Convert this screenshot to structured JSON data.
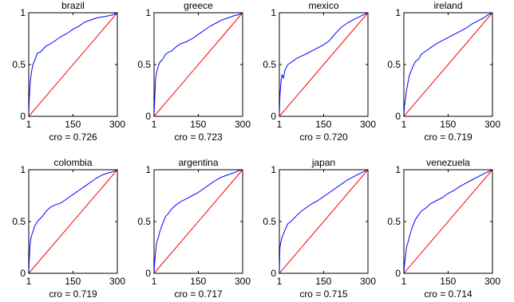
{
  "chart_data": [
    {
      "type": "line",
      "title": "brazil",
      "xlabel": "cro = 0.726",
      "xlim": [
        1,
        300
      ],
      "ylim": [
        0,
        1
      ],
      "xticks": [
        "1",
        "150",
        "300"
      ],
      "yticks": [
        "0",
        "0.5",
        "1"
      ],
      "series": [
        {
          "color": "#0000ff",
          "x": [
            1,
            3,
            6,
            10,
            15,
            20,
            30,
            40,
            50,
            60,
            75,
            90,
            110,
            130,
            150,
            170,
            190,
            210,
            230,
            250,
            270,
            285,
            300
          ],
          "y": [
            0,
            0.18,
            0.33,
            0.42,
            0.5,
            0.53,
            0.61,
            0.62,
            0.65,
            0.68,
            0.7,
            0.73,
            0.77,
            0.8,
            0.84,
            0.87,
            0.91,
            0.93,
            0.95,
            0.96,
            0.97,
            0.98,
            1.0
          ]
        },
        {
          "color": "#ff0000",
          "x": [
            1,
            300
          ],
          "y": [
            0,
            1
          ]
        }
      ]
    },
    {
      "type": "line",
      "title": "greece",
      "xlabel": "cro = 0.723",
      "xlim": [
        1,
        300
      ],
      "ylim": [
        0,
        1
      ],
      "xticks": [
        "1",
        "150",
        "300"
      ],
      "yticks": [
        "0",
        "0.5",
        "1"
      ],
      "series": [
        {
          "color": "#0000ff",
          "x": [
            1,
            3,
            6,
            10,
            15,
            20,
            30,
            40,
            50,
            60,
            75,
            90,
            110,
            130,
            150,
            170,
            190,
            210,
            230,
            250,
            270,
            285,
            300
          ],
          "y": [
            0,
            0.14,
            0.36,
            0.43,
            0.48,
            0.52,
            0.55,
            0.6,
            0.62,
            0.63,
            0.67,
            0.7,
            0.72,
            0.75,
            0.79,
            0.83,
            0.87,
            0.9,
            0.93,
            0.95,
            0.97,
            0.98,
            1.0
          ]
        },
        {
          "color": "#ff0000",
          "x": [
            1,
            300
          ],
          "y": [
            0,
            1
          ]
        }
      ]
    },
    {
      "type": "line",
      "title": "mexico",
      "xlabel": "cro = 0.720",
      "xlim": [
        1,
        300
      ],
      "ylim": [
        0,
        1
      ],
      "xticks": [
        "1",
        "150",
        "300"
      ],
      "yticks": [
        "0",
        "0.5",
        "1"
      ],
      "series": [
        {
          "color": "#0000ff",
          "x": [
            1,
            3,
            6,
            10,
            15,
            20,
            30,
            40,
            50,
            60,
            75,
            90,
            110,
            130,
            150,
            170,
            190,
            210,
            230,
            250,
            270,
            285,
            300
          ],
          "y": [
            0,
            0.2,
            0.32,
            0.4,
            0.37,
            0.45,
            0.5,
            0.52,
            0.54,
            0.56,
            0.58,
            0.6,
            0.63,
            0.66,
            0.69,
            0.73,
            0.8,
            0.86,
            0.9,
            0.93,
            0.96,
            0.98,
            1.0
          ]
        },
        {
          "color": "#ff0000",
          "x": [
            1,
            300
          ],
          "y": [
            0,
            1
          ]
        }
      ]
    },
    {
      "type": "line",
      "title": "ireland",
      "xlabel": "cro = 0.719",
      "xlim": [
        1,
        300
      ],
      "ylim": [
        0,
        1
      ],
      "xticks": [
        "1",
        "150",
        "300"
      ],
      "yticks": [
        "0",
        "0.5",
        "1"
      ],
      "series": [
        {
          "color": "#0000ff",
          "x": [
            1,
            3,
            6,
            10,
            15,
            20,
            30,
            40,
            50,
            60,
            75,
            90,
            110,
            130,
            150,
            170,
            190,
            210,
            230,
            250,
            270,
            285,
            300
          ],
          "y": [
            0,
            0.1,
            0.16,
            0.25,
            0.33,
            0.4,
            0.47,
            0.53,
            0.55,
            0.6,
            0.63,
            0.66,
            0.7,
            0.73,
            0.76,
            0.79,
            0.82,
            0.85,
            0.89,
            0.92,
            0.95,
            0.98,
            1.0
          ]
        },
        {
          "color": "#ff0000",
          "x": [
            1,
            300
          ],
          "y": [
            0,
            1
          ]
        }
      ]
    },
    {
      "type": "line",
      "title": "colombia",
      "xlabel": "cro = 0.719",
      "xlim": [
        1,
        300
      ],
      "ylim": [
        0,
        1
      ],
      "xticks": [
        "1",
        "150",
        "300"
      ],
      "yticks": [
        "0",
        "0.5",
        "1"
      ],
      "series": [
        {
          "color": "#0000ff",
          "x": [
            1,
            3,
            6,
            10,
            15,
            20,
            30,
            40,
            50,
            60,
            75,
            90,
            110,
            130,
            150,
            170,
            190,
            210,
            230,
            250,
            270,
            285,
            300
          ],
          "y": [
            0,
            0.14,
            0.3,
            0.36,
            0.4,
            0.45,
            0.5,
            0.53,
            0.56,
            0.6,
            0.64,
            0.66,
            0.68,
            0.72,
            0.76,
            0.8,
            0.84,
            0.88,
            0.92,
            0.95,
            0.97,
            0.98,
            1.0
          ]
        },
        {
          "color": "#ff0000",
          "x": [
            1,
            300
          ],
          "y": [
            0,
            1
          ]
        }
      ]
    },
    {
      "type": "line",
      "title": "argentina",
      "xlabel": "cro = 0.717",
      "xlim": [
        1,
        300
      ],
      "ylim": [
        0,
        1
      ],
      "xticks": [
        "1",
        "150",
        "300"
      ],
      "yticks": [
        "0",
        "0.5",
        "1"
      ],
      "series": [
        {
          "color": "#0000ff",
          "x": [
            1,
            3,
            6,
            10,
            15,
            20,
            30,
            40,
            50,
            60,
            75,
            90,
            110,
            130,
            150,
            170,
            190,
            210,
            230,
            250,
            270,
            285,
            300
          ],
          "y": [
            0,
            0.1,
            0.2,
            0.3,
            0.34,
            0.4,
            0.48,
            0.55,
            0.58,
            0.62,
            0.66,
            0.69,
            0.72,
            0.75,
            0.78,
            0.82,
            0.86,
            0.9,
            0.93,
            0.95,
            0.97,
            0.99,
            1.0
          ]
        },
        {
          "color": "#ff0000",
          "x": [
            1,
            300
          ],
          "y": [
            0,
            1
          ]
        }
      ]
    },
    {
      "type": "line",
      "title": "japan",
      "xlabel": "cro = 0.715",
      "xlim": [
        1,
        300
      ],
      "ylim": [
        0,
        1
      ],
      "xticks": [
        "1",
        "150",
        "300"
      ],
      "yticks": [
        "0",
        "0.5",
        "1"
      ],
      "series": [
        {
          "color": "#0000ff",
          "x": [
            1,
            3,
            6,
            10,
            15,
            20,
            30,
            40,
            50,
            60,
            75,
            90,
            110,
            130,
            150,
            170,
            190,
            210,
            230,
            250,
            270,
            285,
            300
          ],
          "y": [
            0,
            0.25,
            0.3,
            0.35,
            0.38,
            0.42,
            0.48,
            0.5,
            0.53,
            0.56,
            0.6,
            0.63,
            0.67,
            0.7,
            0.74,
            0.78,
            0.82,
            0.86,
            0.9,
            0.93,
            0.96,
            0.98,
            1.0
          ]
        },
        {
          "color": "#ff0000",
          "x": [
            1,
            300
          ],
          "y": [
            0,
            1
          ]
        }
      ]
    },
    {
      "type": "line",
      "title": "venezuela",
      "xlabel": "cro = 0.714",
      "xlim": [
        1,
        300
      ],
      "ylim": [
        0,
        1
      ],
      "xticks": [
        "1",
        "150",
        "300"
      ],
      "yticks": [
        "0",
        "0.5",
        "1"
      ],
      "series": [
        {
          "color": "#0000ff",
          "x": [
            1,
            3,
            6,
            10,
            15,
            20,
            30,
            40,
            50,
            60,
            75,
            90,
            110,
            130,
            150,
            170,
            190,
            210,
            230,
            250,
            270,
            285,
            300
          ],
          "y": [
            0,
            0.08,
            0.15,
            0.25,
            0.3,
            0.36,
            0.45,
            0.52,
            0.56,
            0.6,
            0.63,
            0.67,
            0.7,
            0.73,
            0.77,
            0.8,
            0.84,
            0.87,
            0.9,
            0.93,
            0.96,
            0.98,
            1.0
          ]
        },
        {
          "color": "#ff0000",
          "x": [
            1,
            300
          ],
          "y": [
            0,
            1
          ]
        }
      ]
    }
  ]
}
